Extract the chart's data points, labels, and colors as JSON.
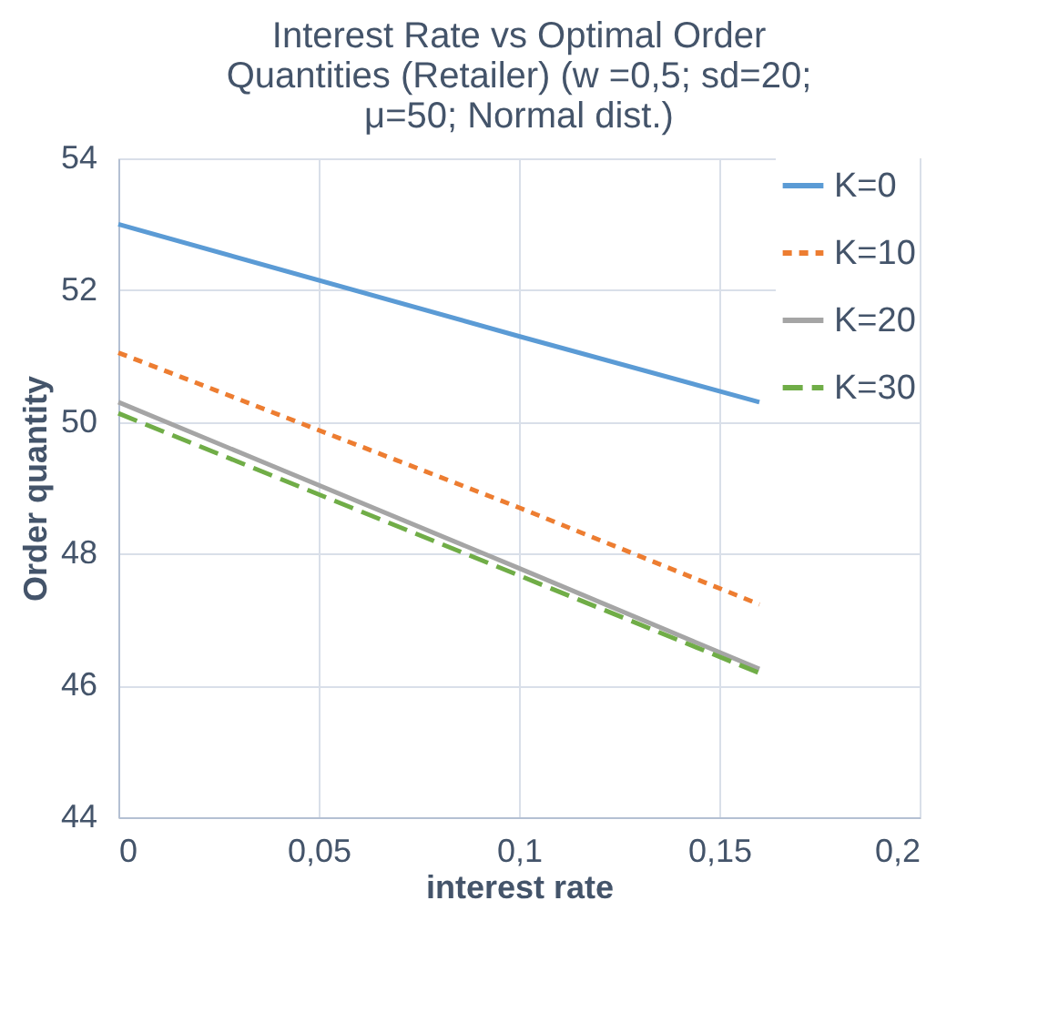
{
  "chart_data": {
    "type": "line",
    "title": "Interest Rate vs Optimal Order Quantities (Retailer) (w =0,5; sd=20; μ=50; Normal dist.)",
    "xlabel": "interest rate",
    "ylabel": "Order quantity",
    "x": [
      0,
      0.1,
      0.16
    ],
    "series": [
      {
        "name": "K=0",
        "color": "#5b9bd5",
        "line_style": "solid",
        "values": [
          53.0,
          51.3,
          50.3
        ]
      },
      {
        "name": "K=10",
        "color": "#ed7d31",
        "line_style": "dotted",
        "values": [
          51.05,
          48.7,
          47.23
        ]
      },
      {
        "name": "K=20",
        "color": "#a5a5a5",
        "line_style": "solid",
        "values": [
          50.3,
          47.78,
          46.25
        ]
      },
      {
        "name": "K=30",
        "color": "#70ad47",
        "line_style": "dashed",
        "values": [
          50.13,
          47.67,
          46.19
        ]
      }
    ],
    "xlim": [
      0,
      0.2
    ],
    "xticks": [
      0,
      {
        "value": 0.05,
        "label": "0,05"
      },
      {
        "value": 0.1,
        "label": "0,1"
      },
      {
        "value": 0.15,
        "label": "0,15"
      },
      {
        "value": 0.2,
        "label": "0,2"
      }
    ],
    "ylim": [
      44,
      54
    ],
    "yticks": [
      44,
      46,
      48,
      50,
      52,
      54
    ],
    "grid": true,
    "legend": "top right",
    "marker": "none"
  }
}
